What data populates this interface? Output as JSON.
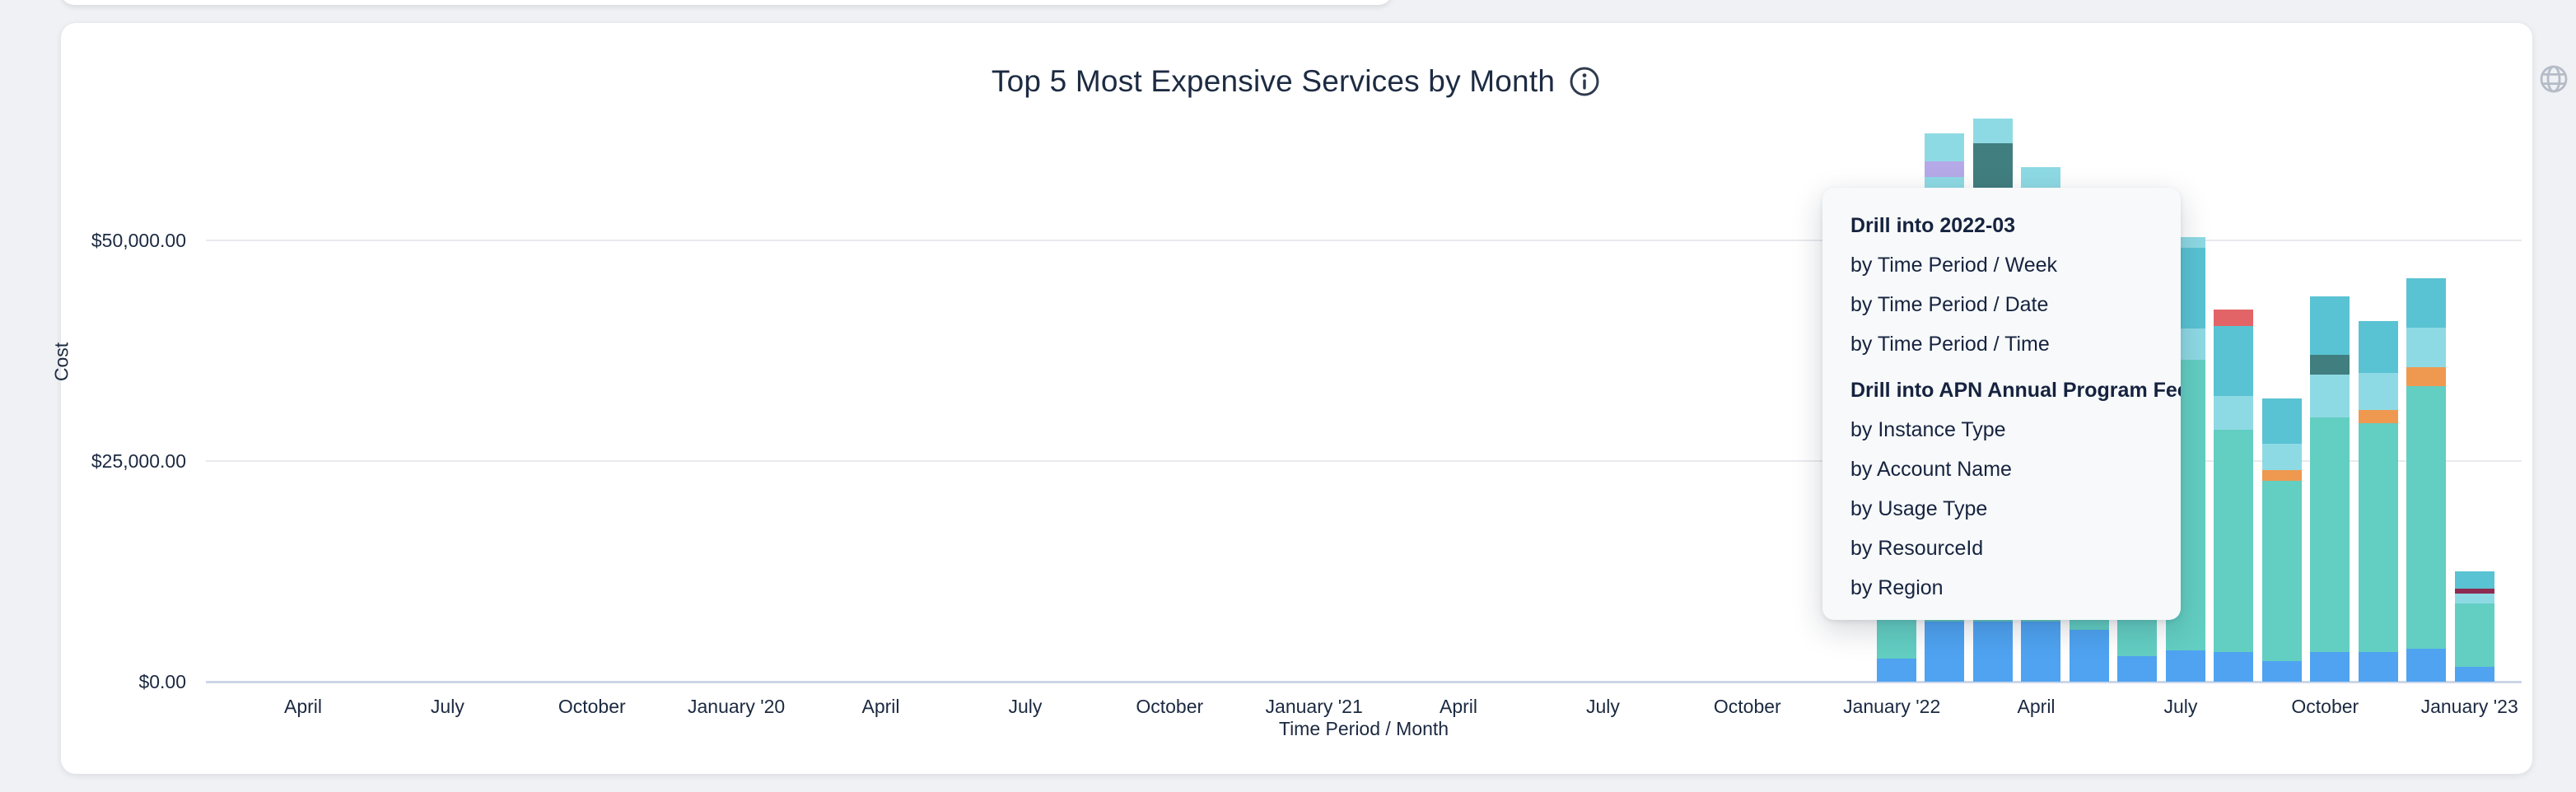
{
  "page": {
    "background": "#eff1f4"
  },
  "card": {
    "title": "Top 5 Most Expensive Services by Month",
    "icons": {
      "info": "info-circle-icon",
      "globe": "globe-icon"
    },
    "icon_colors": {
      "info": "#2f3b4e",
      "globe": "#b5bcc7"
    }
  },
  "chart_data": {
    "type": "stacked-bar",
    "title": "Top 5 Most Expensive Services by Month",
    "xlabel": "Time Period / Month",
    "ylabel": "Cost",
    "ylim": [
      0,
      65000
    ],
    "grid": "horizontal",
    "legend": "none",
    "y_ticks": [
      {
        "label": "$0.00",
        "value": 0
      },
      {
        "label": "$25,000.00",
        "value": 25000
      },
      {
        "label": "$50,000.00",
        "value": 50000
      }
    ],
    "x_tick_labels": [
      "April",
      "July",
      "October",
      "January '20",
      "April",
      "July",
      "October",
      "January '21",
      "April",
      "July",
      "October",
      "January '22",
      "April",
      "July",
      "October",
      "January '23"
    ],
    "palette": {
      "blue": "#4fa3f1",
      "teal": "#63cec2",
      "light_cyan": "#8edae4",
      "medium_cyan": "#59c3d3",
      "dark_teal": "#417e7f",
      "orange": "#ef9950",
      "red": "#e26466",
      "lavender": "#b6a9e8",
      "maroon": "#8e2b52"
    },
    "bars": [
      {
        "month": "2022-01",
        "segments": [
          {
            "color": "blue",
            "value": 2600
          },
          {
            "color": "teal",
            "value": 32400
          }
        ]
      },
      {
        "month": "2022-02",
        "segments": [
          {
            "color": "blue",
            "value": 6800
          },
          {
            "color": "teal",
            "value": 42000
          },
          {
            "color": "light_cyan",
            "value": 8400
          },
          {
            "color": "lavender",
            "value": 1800
          },
          {
            "color": "light_cyan",
            "value": 3100
          }
        ]
      },
      {
        "month": "2022-03",
        "segments": [
          {
            "color": "blue",
            "value": 6800
          },
          {
            "color": "teal",
            "value": 46200
          },
          {
            "color": "dark_teal",
            "value": 8000
          },
          {
            "color": "light_cyan",
            "value": 2800
          }
        ]
      },
      {
        "month": "2022-04",
        "segments": [
          {
            "color": "blue",
            "value": 6800
          },
          {
            "color": "teal",
            "value": 46000
          },
          {
            "color": "light_cyan",
            "value": 5500
          }
        ]
      },
      {
        "month": "2022-05",
        "segments": [
          {
            "color": "blue",
            "value": 5900
          },
          {
            "color": "teal",
            "value": 39000
          }
        ]
      },
      {
        "month": "2022-06",
        "segments": [
          {
            "color": "blue",
            "value": 2900
          },
          {
            "color": "teal",
            "value": 39100
          }
        ]
      },
      {
        "month": "2022-07",
        "segments": [
          {
            "color": "blue",
            "value": 3500
          },
          {
            "color": "teal",
            "value": 33000
          },
          {
            "color": "light_cyan",
            "value": 3500
          },
          {
            "color": "medium_cyan",
            "value": 9200
          },
          {
            "color": "light_cyan",
            "value": 1200
          }
        ]
      },
      {
        "month": "2022-08",
        "segments": [
          {
            "color": "blue",
            "value": 3400
          },
          {
            "color": "teal",
            "value": 25100
          },
          {
            "color": "light_cyan",
            "value": 3900
          },
          {
            "color": "medium_cyan",
            "value": 7900
          },
          {
            "color": "red",
            "value": 1900
          }
        ]
      },
      {
        "month": "2022-09",
        "segments": [
          {
            "color": "blue",
            "value": 2300
          },
          {
            "color": "teal",
            "value": 20500
          },
          {
            "color": "orange",
            "value": 1200
          },
          {
            "color": "light_cyan",
            "value": 3000
          },
          {
            "color": "medium_cyan",
            "value": 5100
          }
        ]
      },
      {
        "month": "2022-10",
        "segments": [
          {
            "color": "blue",
            "value": 3400
          },
          {
            "color": "teal",
            "value": 26500
          },
          {
            "color": "light_cyan",
            "value": 4900
          },
          {
            "color": "dark_teal",
            "value": 2200
          },
          {
            "color": "medium_cyan",
            "value": 6700
          }
        ]
      },
      {
        "month": "2022-11",
        "segments": [
          {
            "color": "blue",
            "value": 3400
          },
          {
            "color": "teal",
            "value": 25900
          },
          {
            "color": "orange",
            "value": 1500
          },
          {
            "color": "light_cyan",
            "value": 4200
          },
          {
            "color": "medium_cyan",
            "value": 5900
          }
        ]
      },
      {
        "month": "2022-12",
        "segments": [
          {
            "color": "blue",
            "value": 3700
          },
          {
            "color": "teal",
            "value": 29800
          },
          {
            "color": "orange",
            "value": 2100
          },
          {
            "color": "light_cyan",
            "value": 4500
          },
          {
            "color": "medium_cyan",
            "value": 5600
          }
        ]
      },
      {
        "month": "2023-01",
        "segments": [
          {
            "color": "blue",
            "value": 1700
          },
          {
            "color": "teal",
            "value": 7200
          },
          {
            "color": "light_cyan",
            "value": 1100
          },
          {
            "color": "maroon",
            "value": 500
          },
          {
            "color": "medium_cyan",
            "value": 2000
          }
        ]
      }
    ]
  },
  "menu": {
    "groups": [
      {
        "header": "Drill into 2022-03",
        "items": [
          "by Time Period / Week",
          "by Time Period / Date",
          "by Time Period / Time"
        ]
      },
      {
        "header": "Drill into APN Annual Program Fee",
        "items": [
          "by Instance Type",
          "by Account Name",
          "by Usage Type",
          "by ResourceId",
          "by Region"
        ]
      }
    ]
  }
}
